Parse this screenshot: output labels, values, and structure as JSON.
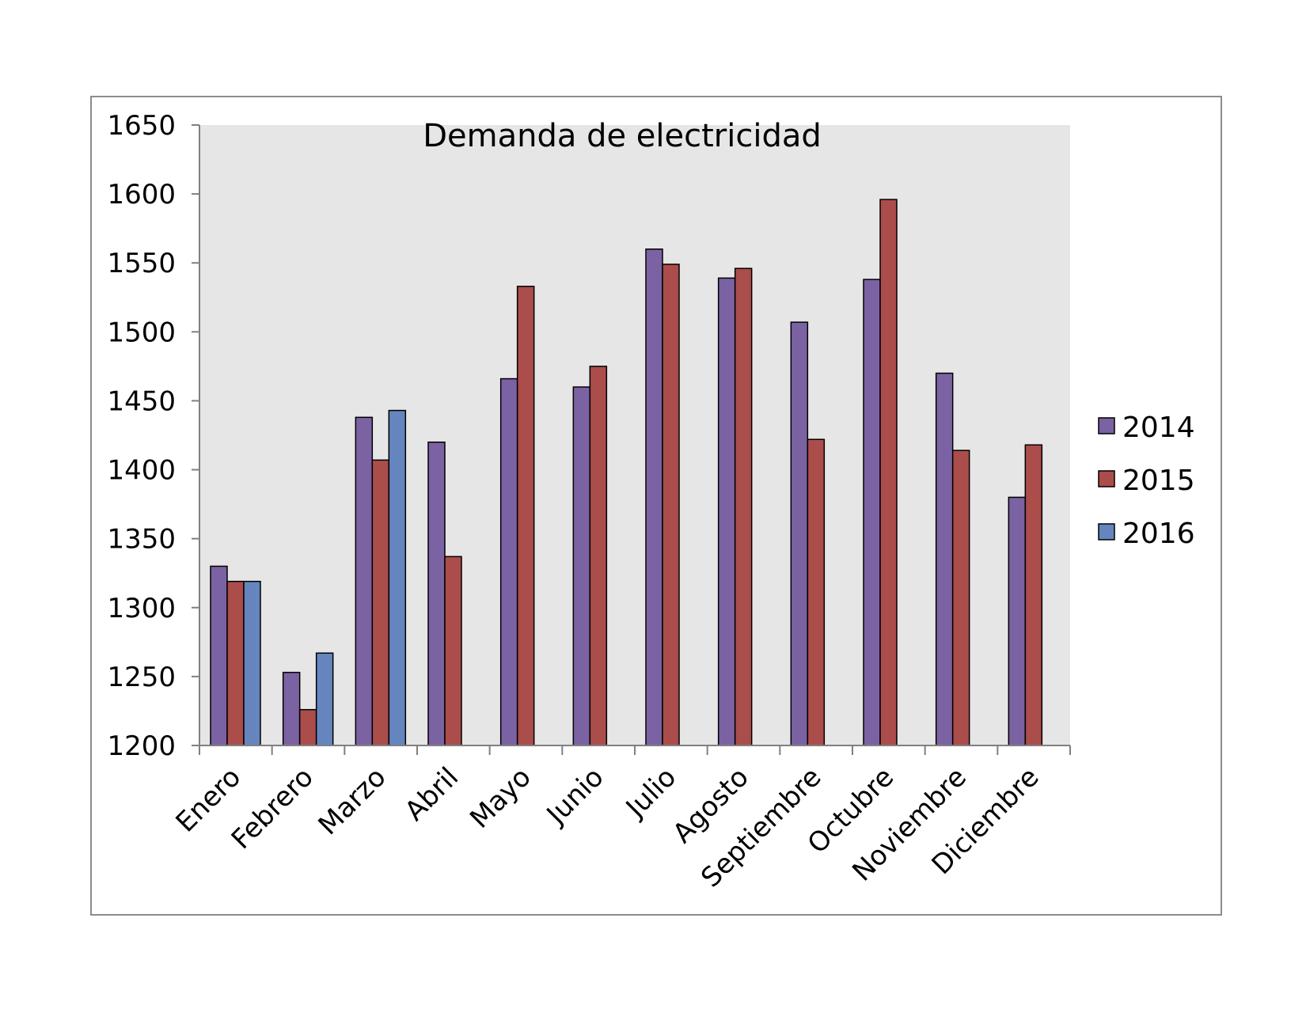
{
  "chart_data": {
    "type": "bar",
    "title": "Demanda de electricidad",
    "xlabel": "",
    "ylabel": "",
    "ylim": [
      1200,
      1650
    ],
    "yticks": [
      1200,
      1250,
      1300,
      1350,
      1400,
      1450,
      1500,
      1550,
      1600,
      1650
    ],
    "grid": false,
    "legend_position": "right",
    "categories": [
      "Enero",
      "Febrero",
      "Marzo",
      "Abril",
      "Mayo",
      "Junio",
      "Julio",
      "Agosto",
      "Septiembre",
      "Octubre",
      "Noviembre",
      "Diciembre"
    ],
    "series": [
      {
        "name": "2014",
        "color": "#7b62a3",
        "values": [
          1330,
          1253,
          1438,
          1420,
          1466,
          1460,
          1560,
          1539,
          1507,
          1538,
          1470,
          1380
        ]
      },
      {
        "name": "2015",
        "color": "#aa4d4b",
        "values": [
          1319,
          1226,
          1407,
          1337,
          1533,
          1475,
          1549,
          1546,
          1422,
          1596,
          1414,
          1418
        ]
      },
      {
        "name": "2016",
        "color": "#6585be",
        "values": [
          1319,
          1267,
          1443,
          null,
          null,
          null,
          null,
          null,
          null,
          null,
          null,
          null
        ]
      }
    ],
    "plot_background": "#e6e6e6"
  }
}
